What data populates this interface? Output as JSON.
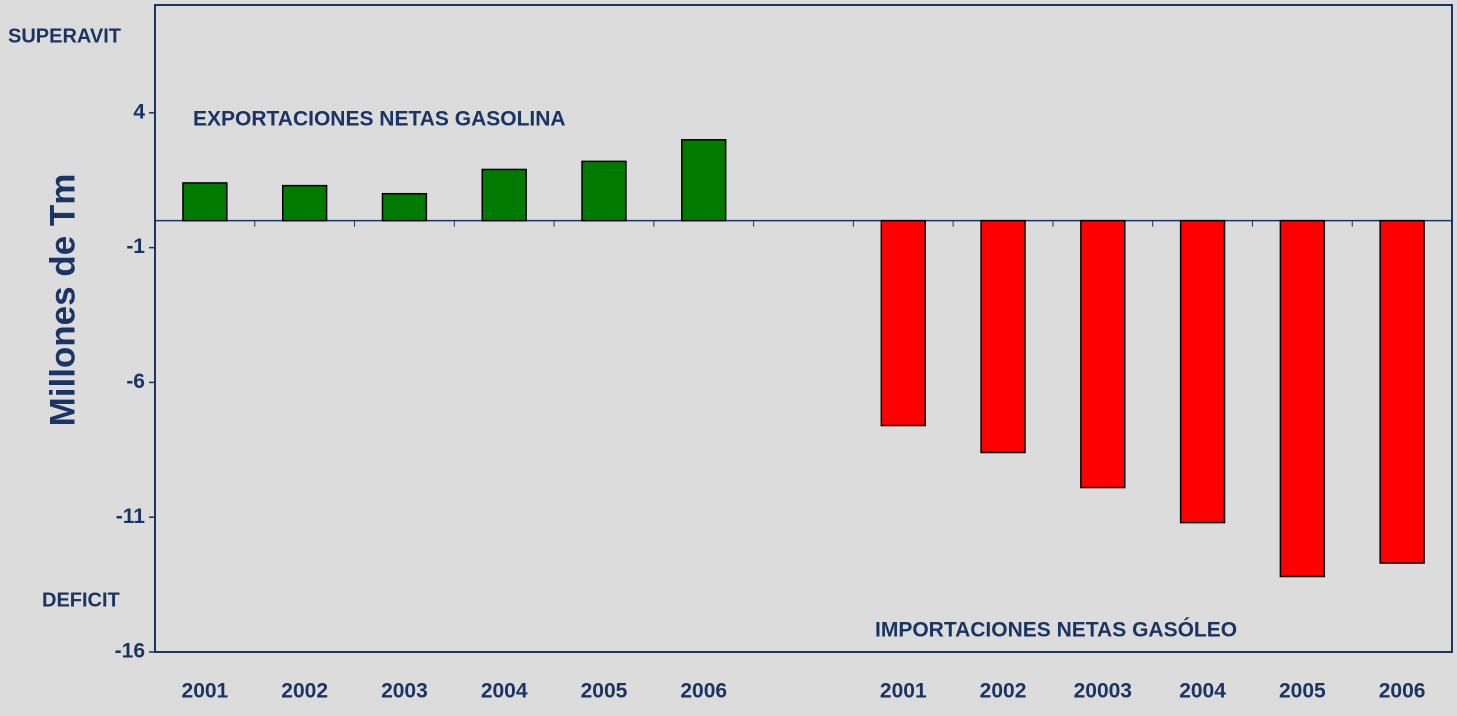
{
  "chart_data": {
    "type": "bar",
    "y_label": "Millones de Tm",
    "annotations": [
      "SUPERAVIT",
      "DEFICIT"
    ],
    "categories": [
      "2001",
      "2002",
      "2003",
      "2004",
      "2005",
      "2006",
      null,
      "2001",
      "2002",
      "20003",
      "2004",
      "2005",
      "2006"
    ],
    "series": [
      {
        "name": "EXPORTACIONES NETAS GASOLINA",
        "color": "#007a00",
        "values": [
          1.4,
          1.3,
          1.0,
          1.9,
          2.2,
          3.0,
          null,
          null,
          null,
          null,
          null,
          null,
          null
        ]
      },
      {
        "name": "IMPORTACIONES NETAS GASÓLEO",
        "color": "#ff0000",
        "values": [
          null,
          null,
          null,
          null,
          null,
          null,
          null,
          -7.6,
          -8.6,
          -9.9,
          -11.2,
          -13.2,
          -12.7
        ]
      }
    ],
    "ylim": [
      -16,
      8
    ],
    "yticks": [
      -16,
      -11,
      -6,
      -1,
      4
    ],
    "grid": false
  }
}
